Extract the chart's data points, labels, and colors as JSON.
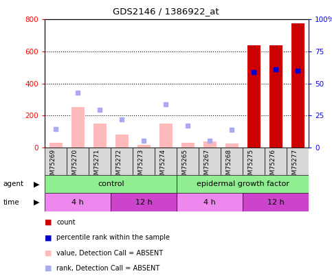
{
  "title": "GDS2146 / 1386922_at",
  "samples": [
    "GSM75269",
    "GSM75270",
    "GSM75271",
    "GSM75272",
    "GSM75273",
    "GSM75274",
    "GSM75265",
    "GSM75267",
    "GSM75268",
    "GSM75275",
    "GSM75276",
    "GSM75277"
  ],
  "bar_values_red": [
    30,
    250,
    150,
    80,
    15,
    150,
    30,
    35,
    25,
    640,
    640,
    775
  ],
  "bar_absent": [
    true,
    true,
    true,
    true,
    true,
    true,
    true,
    true,
    true,
    false,
    false,
    false
  ],
  "scatter_blue_left": [
    115,
    340,
    235,
    175,
    40,
    270,
    135,
    40,
    110,
    470,
    490,
    480
  ],
  "scatter_absent_blue": [
    true,
    true,
    true,
    true,
    true,
    true,
    true,
    true,
    true,
    false,
    false,
    false
  ],
  "ylim_left": [
    0,
    800
  ],
  "ylim_right": [
    0,
    100
  ],
  "yticks_left": [
    0,
    200,
    400,
    600,
    800
  ],
  "yticks_right": [
    0,
    25,
    50,
    75,
    100
  ],
  "ytick_labels_right": [
    "0",
    "25",
    "50",
    "75",
    "100%"
  ],
  "bar_color_present": "#cc0000",
  "bar_color_absent": "#ffbbbb",
  "scatter_color_present": "#0000cc",
  "scatter_color_absent": "#aaaaee",
  "plot_bg": "#ffffff",
  "sample_box_bg": "#d8d8d8",
  "agent_color": "#90ee90",
  "time_color_4h": "#ee88ee",
  "time_color_12h": "#cc44cc",
  "legend_items": [
    {
      "color": "#cc0000",
      "label": "count"
    },
    {
      "color": "#0000cc",
      "label": "percentile rank within the sample"
    },
    {
      "color": "#ffbbbb",
      "label": "value, Detection Call = ABSENT"
    },
    {
      "color": "#aaaaee",
      "label": "rank, Detection Call = ABSENT"
    }
  ]
}
